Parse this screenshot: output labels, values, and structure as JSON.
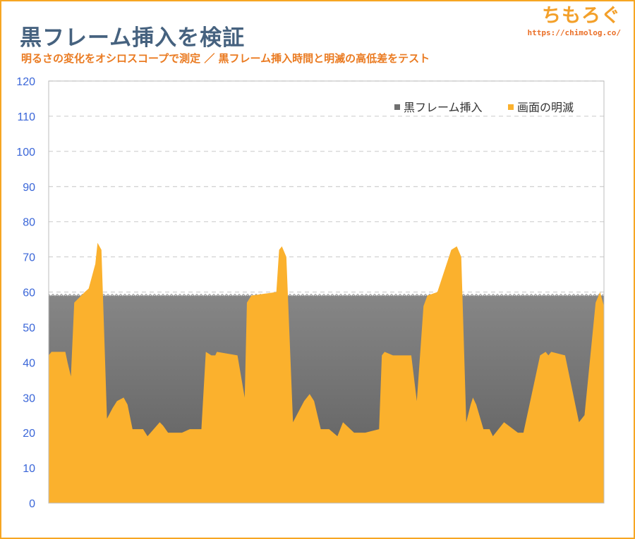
{
  "header": {
    "title": "黒フレーム挿入を検証",
    "subtitle": "明るさの変化をオシロスコープで測定 ／ 黒フレーム挿入時間と明滅の高低差をテスト"
  },
  "logo": {
    "main": "ちもろぐ",
    "url": "https://chimolog.co/"
  },
  "chart_data": {
    "type": "area",
    "title": "黒フレーム挿入を検証",
    "subtitle": "明るさの変化をオシロスコープで測定 ／ 黒フレーム挿入時間と明滅の高低差をテスト",
    "xlabel": "",
    "ylabel": "",
    "ylim": [
      0,
      120
    ],
    "yticks": [
      0,
      10,
      20,
      30,
      40,
      50,
      60,
      70,
      80,
      90,
      100,
      110,
      120
    ],
    "grid": true,
    "legend_position": "top-right",
    "series": [
      {
        "name": "黒フレーム挿入",
        "color": "#7b7b7b",
        "x": [
          0,
          100
        ],
        "values": [
          59,
          59
        ]
      },
      {
        "name": "画面の明滅",
        "color": "#fbb12d",
        "x": [
          0,
          0.5,
          3,
          3.4,
          4.0,
          4.6,
          6.5,
          7.2,
          8.4,
          8.8,
          9.5,
          10.5,
          11.5,
          12.3,
          13.5,
          14.2,
          15.1,
          16.2,
          17.0,
          17.8,
          20.0,
          20.6,
          21.5,
          24.0,
          25.4,
          27.5,
          28.3,
          29.3,
          30.0,
          30.3,
          34.0,
          35.3,
          35.7,
          36.5,
          41.0,
          41.5,
          42.0,
          42.8,
          44.0,
          46.0,
          47.0,
          47.8,
          49.0,
          50.5,
          52.0,
          53.0,
          55.0,
          57.0,
          59.5,
          60.0,
          60.5,
          62.0,
          65.3,
          66.3,
          67.5,
          68.2,
          70.0,
          72.5,
          73.5,
          74.3,
          75.2,
          76.0,
          76.4,
          77.0,
          78.3,
          79.4,
          80.0,
          82.0,
          84.5,
          85.0,
          85.5,
          88.5,
          89.5,
          90.0,
          90.5,
          93.0,
          95.5,
          96.0,
          96.5,
          98.5,
          99.3,
          100
        ],
        "values": [
          42,
          43,
          43,
          40,
          36,
          57,
          60,
          61,
          68,
          74,
          72,
          24,
          27,
          29,
          30,
          28,
          21,
          21,
          21,
          19,
          23,
          22,
          20,
          20,
          21,
          21,
          43,
          42,
          42,
          43,
          42,
          30,
          57,
          59,
          60,
          72,
          73,
          70,
          23,
          29,
          31,
          29,
          21,
          21,
          19,
          23,
          20,
          20,
          21,
          42,
          43,
          42,
          42,
          29,
          56,
          59,
          60,
          72,
          73,
          70,
          23,
          28,
          30,
          28,
          21,
          21,
          19,
          23,
          20,
          20,
          20,
          42,
          43,
          42,
          43,
          42,
          23,
          24,
          25,
          57,
          60,
          56
        ]
      }
    ]
  }
}
